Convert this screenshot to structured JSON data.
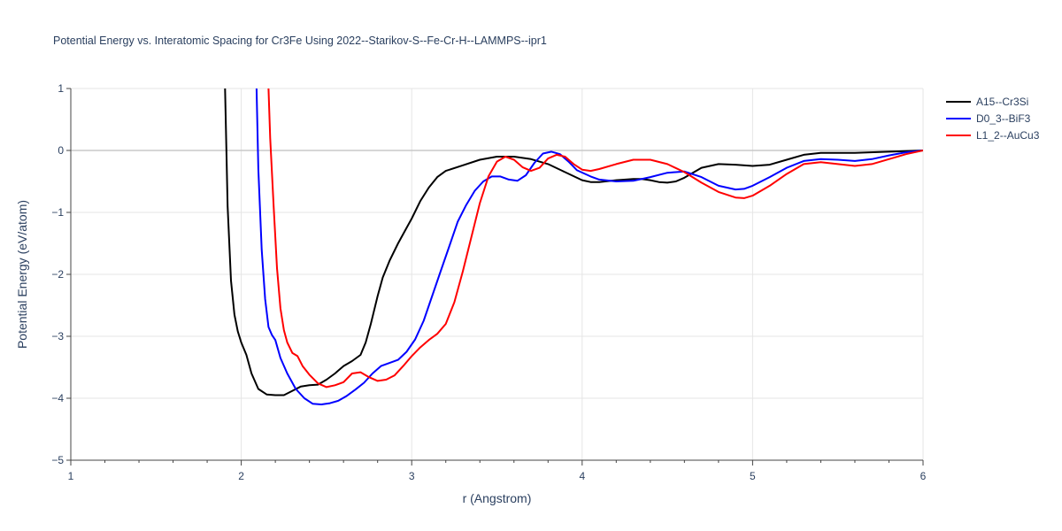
{
  "chart_data": {
    "type": "line",
    "title": "Potential Energy vs. Interatomic Spacing for Cr3Fe Using 2022--Starikov-S--Fe-Cr-H--LAMMPS--ipr1",
    "xlabel": "r (Angstrom)",
    "ylabel": "Potential Energy (eV/atom)",
    "xlim": [
      1,
      6
    ],
    "ylim": [
      -5,
      1
    ],
    "x_ticks": [
      1,
      2,
      3,
      4,
      5,
      6
    ],
    "x_tick_labels": [
      "1",
      "2",
      "3",
      "4",
      "5",
      "6"
    ],
    "y_ticks": [
      1,
      0,
      -1,
      -2,
      -3,
      -4,
      -5
    ],
    "y_tick_labels": [
      "1",
      "0",
      "−1",
      "−2",
      "−3",
      "−4",
      "−5"
    ],
    "grid": true,
    "legend_position": "top-right",
    "series": [
      {
        "name": "A15--Cr3Si",
        "color": "#000000",
        "points": [
          [
            1.905,
            1.0
          ],
          [
            1.92,
            -0.9
          ],
          [
            1.94,
            -2.1
          ],
          [
            1.96,
            -2.65
          ],
          [
            1.98,
            -2.92
          ],
          [
            2.0,
            -3.1
          ],
          [
            2.03,
            -3.3
          ],
          [
            2.06,
            -3.6
          ],
          [
            2.1,
            -3.85
          ],
          [
            2.15,
            -3.94
          ],
          [
            2.2,
            -3.95
          ],
          [
            2.25,
            -3.95
          ],
          [
            2.3,
            -3.88
          ],
          [
            2.35,
            -3.81
          ],
          [
            2.4,
            -3.79
          ],
          [
            2.45,
            -3.78
          ],
          [
            2.5,
            -3.7
          ],
          [
            2.55,
            -3.6
          ],
          [
            2.6,
            -3.48
          ],
          [
            2.65,
            -3.4
          ],
          [
            2.7,
            -3.3
          ],
          [
            2.73,
            -3.1
          ],
          [
            2.76,
            -2.8
          ],
          [
            2.8,
            -2.35
          ],
          [
            2.83,
            -2.05
          ],
          [
            2.87,
            -1.78
          ],
          [
            2.92,
            -1.5
          ],
          [
            2.97,
            -1.25
          ],
          [
            3.0,
            -1.1
          ],
          [
            3.05,
            -0.82
          ],
          [
            3.1,
            -0.6
          ],
          [
            3.15,
            -0.43
          ],
          [
            3.2,
            -0.33
          ],
          [
            3.3,
            -0.24
          ],
          [
            3.4,
            -0.15
          ],
          [
            3.5,
            -0.1
          ],
          [
            3.6,
            -0.1
          ],
          [
            3.7,
            -0.14
          ],
          [
            3.8,
            -0.22
          ],
          [
            3.9,
            -0.35
          ],
          [
            4.0,
            -0.48
          ],
          [
            4.05,
            -0.51
          ],
          [
            4.1,
            -0.51
          ],
          [
            4.2,
            -0.48
          ],
          [
            4.3,
            -0.46
          ],
          [
            4.35,
            -0.46
          ],
          [
            4.4,
            -0.48
          ],
          [
            4.45,
            -0.51
          ],
          [
            4.5,
            -0.52
          ],
          [
            4.55,
            -0.5
          ],
          [
            4.6,
            -0.44
          ],
          [
            4.7,
            -0.28
          ],
          [
            4.8,
            -0.22
          ],
          [
            4.9,
            -0.23
          ],
          [
            5.0,
            -0.25
          ],
          [
            5.1,
            -0.23
          ],
          [
            5.2,
            -0.15
          ],
          [
            5.3,
            -0.07
          ],
          [
            5.4,
            -0.04
          ],
          [
            5.5,
            -0.04
          ],
          [
            5.6,
            -0.04
          ],
          [
            5.8,
            -0.02
          ],
          [
            6.0,
            0.0
          ]
        ]
      },
      {
        "name": "D0_3--BiF3",
        "color": "#0000ff",
        "points": [
          [
            2.09,
            1.0
          ],
          [
            2.1,
            -0.3
          ],
          [
            2.12,
            -1.6
          ],
          [
            2.14,
            -2.4
          ],
          [
            2.16,
            -2.85
          ],
          [
            2.18,
            -2.98
          ],
          [
            2.2,
            -3.06
          ],
          [
            2.23,
            -3.35
          ],
          [
            2.27,
            -3.6
          ],
          [
            2.32,
            -3.85
          ],
          [
            2.37,
            -4.0
          ],
          [
            2.42,
            -4.09
          ],
          [
            2.47,
            -4.1
          ],
          [
            2.52,
            -4.08
          ],
          [
            2.57,
            -4.04
          ],
          [
            2.62,
            -3.96
          ],
          [
            2.67,
            -3.86
          ],
          [
            2.72,
            -3.75
          ],
          [
            2.77,
            -3.6
          ],
          [
            2.82,
            -3.48
          ],
          [
            2.87,
            -3.43
          ],
          [
            2.92,
            -3.38
          ],
          [
            2.97,
            -3.25
          ],
          [
            3.02,
            -3.05
          ],
          [
            3.07,
            -2.75
          ],
          [
            3.12,
            -2.35
          ],
          [
            3.17,
            -1.95
          ],
          [
            3.22,
            -1.55
          ],
          [
            3.27,
            -1.15
          ],
          [
            3.32,
            -0.88
          ],
          [
            3.37,
            -0.65
          ],
          [
            3.42,
            -0.5
          ],
          [
            3.47,
            -0.42
          ],
          [
            3.52,
            -0.42
          ],
          [
            3.57,
            -0.47
          ],
          [
            3.62,
            -0.49
          ],
          [
            3.67,
            -0.4
          ],
          [
            3.72,
            -0.2
          ],
          [
            3.77,
            -0.05
          ],
          [
            3.82,
            -0.02
          ],
          [
            3.87,
            -0.06
          ],
          [
            3.92,
            -0.18
          ],
          [
            3.97,
            -0.32
          ],
          [
            4.05,
            -0.42
          ],
          [
            4.1,
            -0.47
          ],
          [
            4.2,
            -0.5
          ],
          [
            4.3,
            -0.49
          ],
          [
            4.4,
            -0.43
          ],
          [
            4.5,
            -0.36
          ],
          [
            4.6,
            -0.34
          ],
          [
            4.7,
            -0.43
          ],
          [
            4.8,
            -0.57
          ],
          [
            4.9,
            -0.63
          ],
          [
            4.95,
            -0.62
          ],
          [
            5.0,
            -0.57
          ],
          [
            5.1,
            -0.43
          ],
          [
            5.2,
            -0.28
          ],
          [
            5.3,
            -0.17
          ],
          [
            5.4,
            -0.14
          ],
          [
            5.5,
            -0.15
          ],
          [
            5.6,
            -0.17
          ],
          [
            5.7,
            -0.14
          ],
          [
            5.8,
            -0.08
          ],
          [
            5.9,
            -0.03
          ],
          [
            6.0,
            0.0
          ]
        ]
      },
      {
        "name": "L1_2--AuCu3",
        "color": "#ff0000",
        "points": [
          [
            2.16,
            1.0
          ],
          [
            2.17,
            0.2
          ],
          [
            2.19,
            -0.9
          ],
          [
            2.21,
            -1.9
          ],
          [
            2.23,
            -2.55
          ],
          [
            2.25,
            -2.9
          ],
          [
            2.27,
            -3.1
          ],
          [
            2.3,
            -3.27
          ],
          [
            2.33,
            -3.32
          ],
          [
            2.36,
            -3.48
          ],
          [
            2.4,
            -3.62
          ],
          [
            2.45,
            -3.76
          ],
          [
            2.5,
            -3.82
          ],
          [
            2.55,
            -3.79
          ],
          [
            2.6,
            -3.74
          ],
          [
            2.65,
            -3.6
          ],
          [
            2.7,
            -3.58
          ],
          [
            2.75,
            -3.66
          ],
          [
            2.8,
            -3.72
          ],
          [
            2.85,
            -3.7
          ],
          [
            2.9,
            -3.63
          ],
          [
            2.95,
            -3.48
          ],
          [
            3.0,
            -3.32
          ],
          [
            3.05,
            -3.18
          ],
          [
            3.1,
            -3.06
          ],
          [
            3.15,
            -2.96
          ],
          [
            3.2,
            -2.8
          ],
          [
            3.25,
            -2.45
          ],
          [
            3.3,
            -1.95
          ],
          [
            3.35,
            -1.4
          ],
          [
            3.4,
            -0.85
          ],
          [
            3.45,
            -0.42
          ],
          [
            3.5,
            -0.18
          ],
          [
            3.55,
            -0.1
          ],
          [
            3.6,
            -0.15
          ],
          [
            3.65,
            -0.27
          ],
          [
            3.7,
            -0.33
          ],
          [
            3.75,
            -0.28
          ],
          [
            3.8,
            -0.13
          ],
          [
            3.85,
            -0.07
          ],
          [
            3.9,
            -0.1
          ],
          [
            3.95,
            -0.22
          ],
          [
            4.0,
            -0.31
          ],
          [
            4.05,
            -0.33
          ],
          [
            4.1,
            -0.3
          ],
          [
            4.2,
            -0.22
          ],
          [
            4.3,
            -0.15
          ],
          [
            4.4,
            -0.15
          ],
          [
            4.5,
            -0.22
          ],
          [
            4.6,
            -0.35
          ],
          [
            4.7,
            -0.52
          ],
          [
            4.8,
            -0.67
          ],
          [
            4.9,
            -0.76
          ],
          [
            4.95,
            -0.77
          ],
          [
            5.0,
            -0.73
          ],
          [
            5.1,
            -0.57
          ],
          [
            5.2,
            -0.38
          ],
          [
            5.3,
            -0.22
          ],
          [
            5.4,
            -0.19
          ],
          [
            5.5,
            -0.22
          ],
          [
            5.6,
            -0.25
          ],
          [
            5.7,
            -0.22
          ],
          [
            5.8,
            -0.14
          ],
          [
            5.9,
            -0.06
          ],
          [
            6.0,
            0.0
          ]
        ]
      }
    ]
  }
}
